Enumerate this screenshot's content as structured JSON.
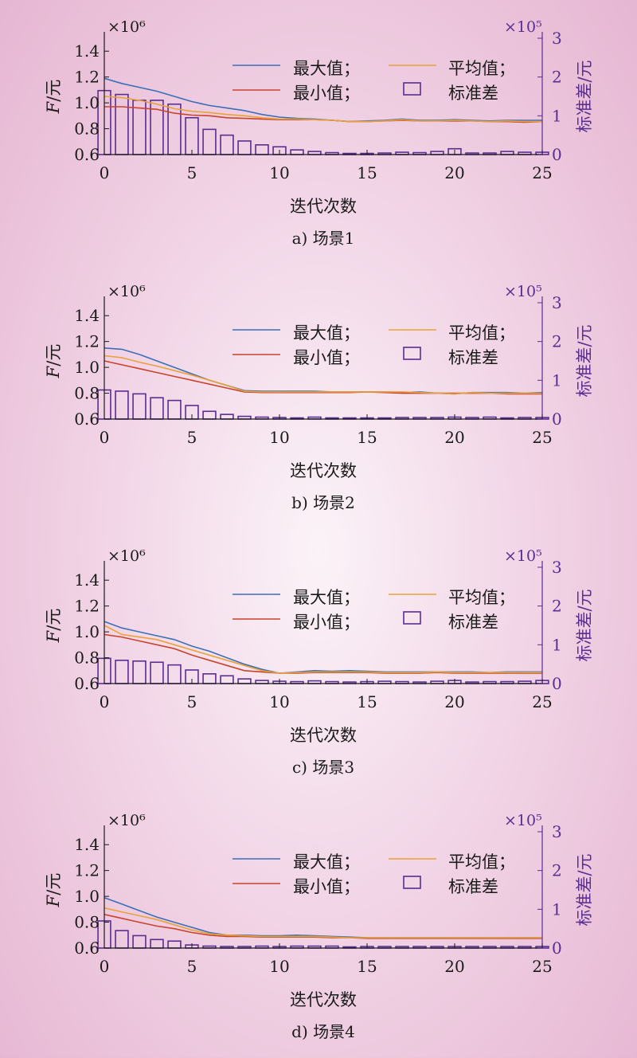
{
  "colors": {
    "axis": "#1a1a1a",
    "right_axis": "#5a2d91",
    "max": "#3b6fb6",
    "min": "#c8442b",
    "avg": "#e8a23a",
    "std_bar": "#5a2d91"
  },
  "chart_data": [
    {
      "type": "line",
      "caption": "a) 场景1",
      "xlabel": "迭代次数",
      "ylabel_italic": "F",
      "ylabel_rest": "/元",
      "ylabel_right": "标准差/元",
      "left_multiplier": "×10⁶",
      "right_multiplier": "×10⁵",
      "xlim": [
        0,
        25
      ],
      "ylim": [
        0.6,
        1.5
      ],
      "y2lim": [
        0,
        3
      ],
      "xticks": [
        0,
        5,
        10,
        15,
        20,
        25
      ],
      "yticks": [
        "0.6",
        "0.8",
        "1.0",
        "1.2",
        "1.4"
      ],
      "y2ticks": [
        "0",
        "1",
        "2",
        "3"
      ],
      "legend": [
        "最大值；",
        "最小值；",
        "平均值；",
        "标准差"
      ],
      "x": [
        0,
        1,
        2,
        3,
        4,
        5,
        6,
        7,
        8,
        9,
        10,
        11,
        12,
        13,
        14,
        15,
        16,
        17,
        18,
        19,
        20,
        21,
        22,
        23,
        24,
        25
      ],
      "series": [
        {
          "key": "max",
          "values": [
            1.19,
            1.15,
            1.12,
            1.09,
            1.05,
            1.01,
            0.98,
            0.96,
            0.94,
            0.91,
            0.89,
            0.88,
            0.875,
            0.865,
            0.855,
            0.86,
            0.865,
            0.875,
            0.865,
            0.865,
            0.87,
            0.865,
            0.86,
            0.865,
            0.865,
            0.865
          ]
        },
        {
          "key": "min",
          "values": [
            0.97,
            0.97,
            0.96,
            0.95,
            0.92,
            0.905,
            0.9,
            0.885,
            0.88,
            0.875,
            0.87,
            0.87,
            0.87,
            0.865,
            0.855,
            0.855,
            0.86,
            0.865,
            0.86,
            0.86,
            0.86,
            0.86,
            0.855,
            0.855,
            0.85,
            0.855
          ]
        },
        {
          "key": "avg",
          "values": [
            1.05,
            1.04,
            1.02,
            0.99,
            0.955,
            0.935,
            0.925,
            0.91,
            0.9,
            0.885,
            0.875,
            0.875,
            0.87,
            0.865,
            0.855,
            0.855,
            0.86,
            0.87,
            0.86,
            0.86,
            0.865,
            0.86,
            0.855,
            0.86,
            0.855,
            0.855
          ]
        },
        {
          "key": "std",
          "bar": true,
          "values": [
            1.65,
            1.55,
            1.4,
            1.4,
            1.3,
            0.95,
            0.65,
            0.5,
            0.35,
            0.25,
            0.2,
            0.12,
            0.08,
            0.05,
            0.03,
            0.03,
            0.04,
            0.06,
            0.05,
            0.08,
            0.15,
            0.04,
            0.04,
            0.08,
            0.06,
            0.06
          ]
        }
      ]
    },
    {
      "type": "line",
      "caption": "b) 场景2",
      "xlabel": "迭代次数",
      "ylabel_italic": "F",
      "ylabel_rest": "/元",
      "ylabel_right": "标准差/元",
      "left_multiplier": "×10⁶",
      "right_multiplier": "×10⁵",
      "xlim": [
        0,
        25
      ],
      "ylim": [
        0.6,
        1.5
      ],
      "y2lim": [
        0,
        3
      ],
      "xticks": [
        0,
        5,
        10,
        15,
        20,
        25
      ],
      "yticks": [
        "0.6",
        "0.8",
        "1.0",
        "1.2",
        "1.4"
      ],
      "y2ticks": [
        "0",
        "1",
        "2",
        "3"
      ],
      "legend": [
        "最大值；",
        "最小值；",
        "平均值；",
        "标准差"
      ],
      "x": [
        0,
        1,
        2,
        3,
        4,
        5,
        6,
        7,
        8,
        9,
        10,
        11,
        12,
        13,
        14,
        15,
        16,
        17,
        18,
        19,
        20,
        21,
        22,
        23,
        24,
        25
      ],
      "series": [
        {
          "key": "max",
          "values": [
            1.15,
            1.14,
            1.1,
            1.05,
            1.0,
            0.95,
            0.9,
            0.86,
            0.82,
            0.815,
            0.815,
            0.815,
            0.815,
            0.81,
            0.81,
            0.81,
            0.81,
            0.805,
            0.81,
            0.8,
            0.795,
            0.805,
            0.805,
            0.805,
            0.8,
            0.805
          ]
        },
        {
          "key": "min",
          "values": [
            1.05,
            1.02,
            0.99,
            0.96,
            0.93,
            0.9,
            0.87,
            0.84,
            0.81,
            0.805,
            0.805,
            0.805,
            0.805,
            0.805,
            0.805,
            0.81,
            0.805,
            0.8,
            0.8,
            0.8,
            0.8,
            0.8,
            0.8,
            0.795,
            0.795,
            0.795
          ]
        },
        {
          "key": "avg",
          "values": [
            1.09,
            1.075,
            1.04,
            1.01,
            0.975,
            0.94,
            0.9,
            0.86,
            0.815,
            0.81,
            0.81,
            0.81,
            0.81,
            0.81,
            0.81,
            0.81,
            0.81,
            0.81,
            0.805,
            0.8,
            0.795,
            0.805,
            0.8,
            0.8,
            0.8,
            0.8
          ]
        },
        {
          "key": "std",
          "bar": true,
          "values": [
            0.75,
            0.72,
            0.65,
            0.55,
            0.48,
            0.35,
            0.2,
            0.12,
            0.07,
            0.05,
            0.04,
            0.03,
            0.05,
            0.03,
            0.03,
            0.03,
            0.03,
            0.04,
            0.04,
            0.04,
            0.05,
            0.04,
            0.05,
            0.03,
            0.04,
            0.04
          ]
        }
      ]
    },
    {
      "type": "line",
      "caption": "c) 场景3",
      "xlabel": "迭代次数",
      "ylabel_italic": "F",
      "ylabel_rest": "/元",
      "ylabel_right": "标准差/元",
      "left_multiplier": "×10⁶",
      "right_multiplier": "×10⁵",
      "xlim": [
        0,
        25
      ],
      "ylim": [
        0.6,
        1.5
      ],
      "y2lim": [
        0,
        3
      ],
      "xticks": [
        0,
        5,
        10,
        15,
        20,
        25
      ],
      "yticks": [
        "0.6",
        "0.8",
        "1.0",
        "1.2",
        "1.4"
      ],
      "y2ticks": [
        "0",
        "1",
        "2",
        "3"
      ],
      "legend": [
        "最大值；",
        "最小值；",
        "平均值；",
        "标准差"
      ],
      "x": [
        0,
        1,
        2,
        3,
        4,
        5,
        6,
        7,
        8,
        9,
        10,
        11,
        12,
        13,
        14,
        15,
        16,
        17,
        18,
        19,
        20,
        21,
        22,
        23,
        24,
        25
      ],
      "series": [
        {
          "key": "max",
          "values": [
            1.08,
            1.03,
            1.0,
            0.97,
            0.94,
            0.89,
            0.85,
            0.8,
            0.75,
            0.71,
            0.68,
            0.69,
            0.7,
            0.695,
            0.7,
            0.695,
            0.69,
            0.69,
            0.69,
            0.69,
            0.69,
            0.69,
            0.685,
            0.69,
            0.69,
            0.69
          ]
        },
        {
          "key": "min",
          "values": [
            0.98,
            0.96,
            0.93,
            0.9,
            0.87,
            0.82,
            0.78,
            0.74,
            0.7,
            0.69,
            0.68,
            0.68,
            0.685,
            0.685,
            0.685,
            0.685,
            0.68,
            0.68,
            0.68,
            0.685,
            0.68,
            0.68,
            0.68,
            0.68,
            0.68,
            0.68
          ]
        },
        {
          "key": "avg",
          "values": [
            1.05,
            0.98,
            0.96,
            0.94,
            0.9,
            0.86,
            0.82,
            0.78,
            0.74,
            0.7,
            0.68,
            0.685,
            0.69,
            0.69,
            0.69,
            0.69,
            0.685,
            0.685,
            0.685,
            0.69,
            0.685,
            0.685,
            0.685,
            0.685,
            0.685,
            0.685
          ]
        },
        {
          "key": "std",
          "bar": true,
          "values": [
            0.65,
            0.6,
            0.58,
            0.55,
            0.48,
            0.35,
            0.25,
            0.2,
            0.12,
            0.08,
            0.06,
            0.05,
            0.07,
            0.05,
            0.04,
            0.05,
            0.06,
            0.05,
            0.04,
            0.06,
            0.08,
            0.04,
            0.05,
            0.05,
            0.06,
            0.08
          ]
        }
      ]
    },
    {
      "type": "line",
      "caption": "d) 场景4",
      "xlabel": "迭代次数",
      "ylabel_italic": "F",
      "ylabel_rest": "/元",
      "ylabel_right": "标准差/元",
      "left_multiplier": "×10⁶",
      "right_multiplier": "×10⁵",
      "xlim": [
        0,
        25
      ],
      "ylim": [
        0.6,
        1.5
      ],
      "y2lim": [
        0,
        3
      ],
      "xticks": [
        0,
        5,
        10,
        15,
        20,
        25
      ],
      "yticks": [
        "0.6",
        "0.8",
        "1.0",
        "1.2",
        "1.4"
      ],
      "y2ticks": [
        "0",
        "1",
        "2",
        "3"
      ],
      "legend": [
        "最大值；",
        "最小值；",
        "平均值；",
        "标准差"
      ],
      "x": [
        0,
        1,
        2,
        3,
        4,
        5,
        6,
        7,
        8,
        9,
        10,
        11,
        12,
        13,
        14,
        15,
        16,
        17,
        18,
        19,
        20,
        21,
        22,
        23,
        24,
        25
      ],
      "series": [
        {
          "key": "max",
          "values": [
            0.99,
            0.94,
            0.89,
            0.84,
            0.8,
            0.76,
            0.72,
            0.7,
            0.7,
            0.695,
            0.695,
            0.7,
            0.695,
            0.69,
            0.685,
            0.68,
            0.68,
            0.68,
            0.68,
            0.68,
            0.68,
            0.68,
            0.68,
            0.68,
            0.68,
            0.68
          ]
        },
        {
          "key": "min",
          "values": [
            0.86,
            0.83,
            0.8,
            0.77,
            0.75,
            0.72,
            0.7,
            0.69,
            0.69,
            0.685,
            0.685,
            0.685,
            0.685,
            0.68,
            0.68,
            0.675,
            0.675,
            0.675,
            0.675,
            0.675,
            0.675,
            0.675,
            0.675,
            0.675,
            0.675,
            0.675
          ]
        },
        {
          "key": "avg",
          "values": [
            0.91,
            0.88,
            0.85,
            0.82,
            0.78,
            0.74,
            0.71,
            0.7,
            0.695,
            0.69,
            0.69,
            0.69,
            0.69,
            0.685,
            0.68,
            0.68,
            0.68,
            0.68,
            0.68,
            0.68,
            0.68,
            0.68,
            0.68,
            0.68,
            0.68,
            0.68
          ]
        },
        {
          "key": "std",
          "bar": true,
          "values": [
            0.7,
            0.45,
            0.32,
            0.22,
            0.18,
            0.08,
            0.05,
            0.04,
            0.04,
            0.05,
            0.04,
            0.05,
            0.05,
            0.05,
            0.03,
            0.04,
            0.04,
            0.04,
            0.04,
            0.04,
            0.04,
            0.04,
            0.04,
            0.04,
            0.04,
            0.04
          ]
        }
      ]
    }
  ]
}
